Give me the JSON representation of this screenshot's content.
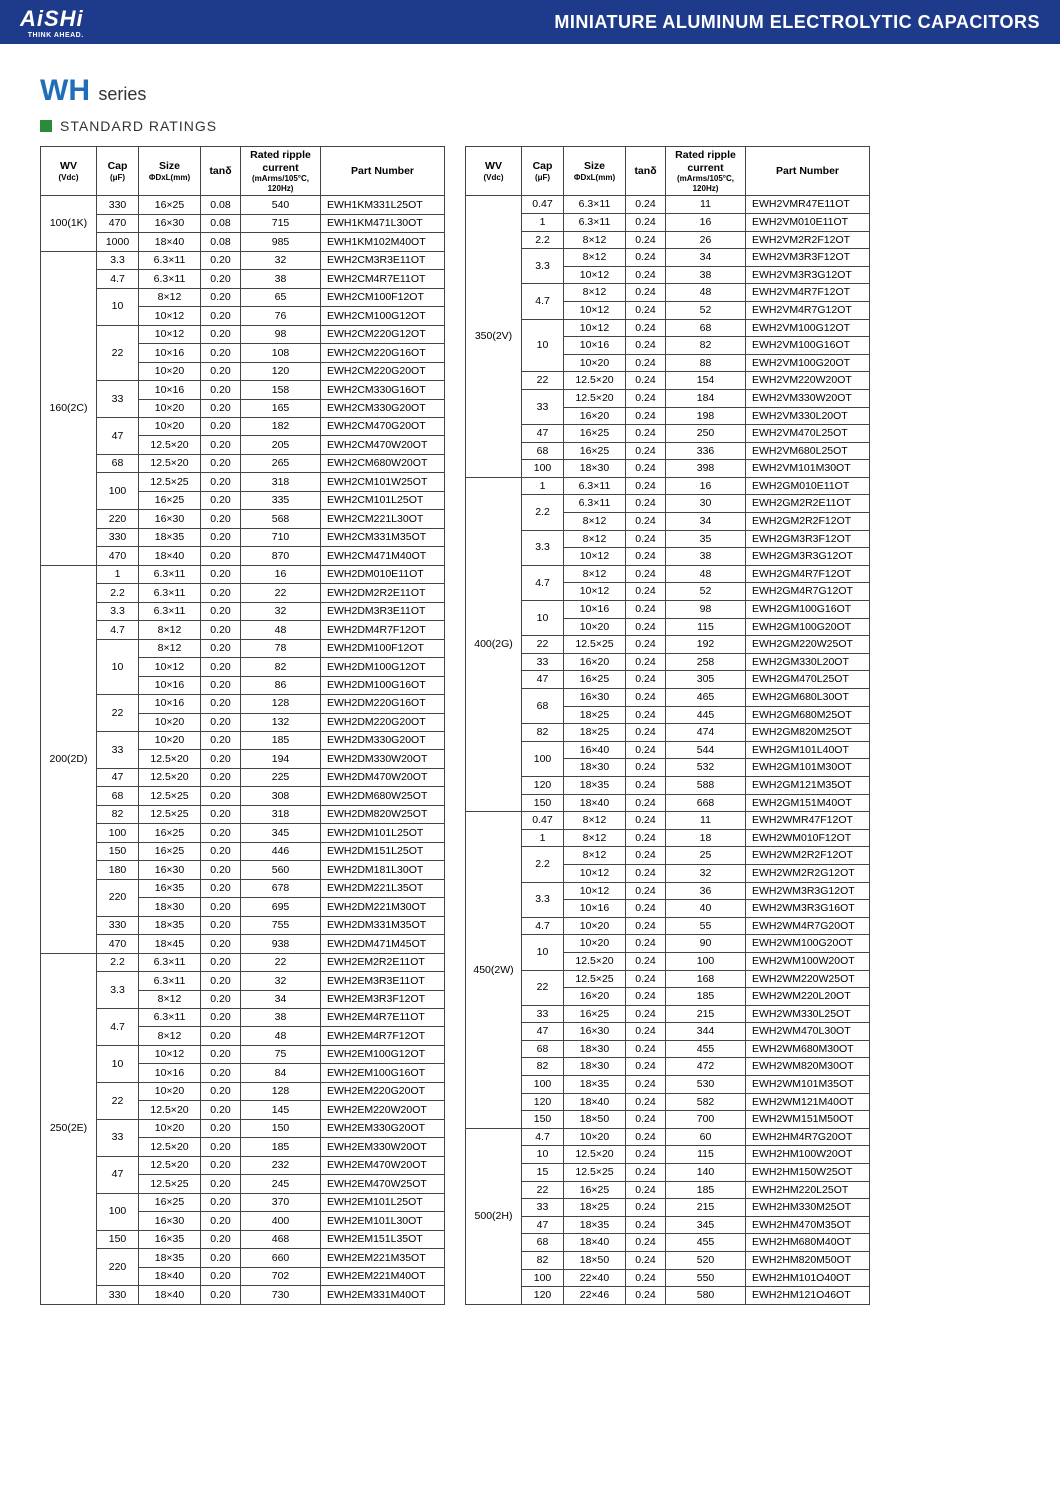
{
  "header": {
    "brand": "AiSHi",
    "brand_sub": "THINK AHEAD.",
    "title": "MINIATURE ALUMINUM ELECTROLYTIC CAPACITORS"
  },
  "series": {
    "name": "WH",
    "suffix": "series",
    "section": "STANDARD RATINGS"
  },
  "columns": {
    "wv": "WV",
    "wv_sub": "(Vdc)",
    "cap": "Cap",
    "cap_sub": "(μF)",
    "size": "Size",
    "size_sub": "ΦDxL(mm)",
    "tan": "tanδ",
    "ripple": "Rated ripple current",
    "ripple_sub": "(mArms/105°C, 120Hz)",
    "pn": "Part Number"
  },
  "left": [
    {
      "wv": "100(1K)",
      "rows": [
        {
          "cap": "330",
          "size": "16×25",
          "tan": "0.08",
          "rip": "540",
          "pn": "EWH1KM331L25OT"
        },
        {
          "cap": "470",
          "size": "16×30",
          "tan": "0.08",
          "rip": "715",
          "pn": "EWH1KM471L30OT"
        },
        {
          "cap": "1000",
          "size": "18×40",
          "tan": "0.08",
          "rip": "985",
          "pn": "EWH1KM102M40OT"
        }
      ]
    },
    {
      "wv": "160(2C)",
      "rows": [
        {
          "cap": "3.3",
          "size": "6.3×11",
          "tan": "0.20",
          "rip": "32",
          "pn": "EWH2CM3R3E11OT"
        },
        {
          "cap": "4.7",
          "size": "6.3×11",
          "tan": "0.20",
          "rip": "38",
          "pn": "EWH2CM4R7E11OT"
        },
        {
          "cap": "10",
          "cr": 2,
          "size": "8×12",
          "tan": "0.20",
          "rip": "65",
          "pn": "EWH2CM100F12OT"
        },
        {
          "size": "10×12",
          "tan": "0.20",
          "rip": "76",
          "pn": "EWH2CM100G12OT"
        },
        {
          "cap": "22",
          "cr": 3,
          "size": "10×12",
          "tan": "0.20",
          "rip": "98",
          "pn": "EWH2CM220G12OT"
        },
        {
          "size": "10×16",
          "tan": "0.20",
          "rip": "108",
          "pn": "EWH2CM220G16OT"
        },
        {
          "size": "10×20",
          "tan": "0.20",
          "rip": "120",
          "pn": "EWH2CM220G20OT"
        },
        {
          "cap": "33",
          "cr": 2,
          "size": "10×16",
          "tan": "0.20",
          "rip": "158",
          "pn": "EWH2CM330G16OT"
        },
        {
          "size": "10×20",
          "tan": "0.20",
          "rip": "165",
          "pn": "EWH2CM330G20OT"
        },
        {
          "cap": "47",
          "cr": 2,
          "size": "10×20",
          "tan": "0.20",
          "rip": "182",
          "pn": "EWH2CM470G20OT"
        },
        {
          "size": "12.5×20",
          "tan": "0.20",
          "rip": "205",
          "pn": "EWH2CM470W20OT"
        },
        {
          "cap": "68",
          "size": "12.5×20",
          "tan": "0.20",
          "rip": "265",
          "pn": "EWH2CM680W20OT"
        },
        {
          "cap": "100",
          "cr": 2,
          "size": "12.5×25",
          "tan": "0.20",
          "rip": "318",
          "pn": "EWH2CM101W25OT"
        },
        {
          "size": "16×25",
          "tan": "0.20",
          "rip": "335",
          "pn": "EWH2CM101L25OT"
        },
        {
          "cap": "220",
          "size": "16×30",
          "tan": "0.20",
          "rip": "568",
          "pn": "EWH2CM221L30OT"
        },
        {
          "cap": "330",
          "size": "18×35",
          "tan": "0.20",
          "rip": "710",
          "pn": "EWH2CM331M35OT"
        },
        {
          "cap": "470",
          "size": "18×40",
          "tan": "0.20",
          "rip": "870",
          "pn": "EWH2CM471M40OT"
        }
      ]
    },
    {
      "wv": "200(2D)",
      "rows": [
        {
          "cap": "1",
          "size": "6.3×11",
          "tan": "0.20",
          "rip": "16",
          "pn": "EWH2DM010E11OT"
        },
        {
          "cap": "2.2",
          "size": "6.3×11",
          "tan": "0.20",
          "rip": "22",
          "pn": "EWH2DM2R2E11OT"
        },
        {
          "cap": "3.3",
          "size": "6.3×11",
          "tan": "0.20",
          "rip": "32",
          "pn": "EWH2DM3R3E11OT"
        },
        {
          "cap": "4.7",
          "size": "8×12",
          "tan": "0.20",
          "rip": "48",
          "pn": "EWH2DM4R7F12OT"
        },
        {
          "cap": "10",
          "cr": 3,
          "size": "8×12",
          "tan": "0.20",
          "rip": "78",
          "pn": "EWH2DM100F12OT"
        },
        {
          "size": "10×12",
          "tan": "0.20",
          "rip": "82",
          "pn": "EWH2DM100G12OT"
        },
        {
          "size": "10×16",
          "tan": "0.20",
          "rip": "86",
          "pn": "EWH2DM100G16OT"
        },
        {
          "cap": "22",
          "cr": 2,
          "size": "10×16",
          "tan": "0.20",
          "rip": "128",
          "pn": "EWH2DM220G16OT"
        },
        {
          "size": "10×20",
          "tan": "0.20",
          "rip": "132",
          "pn": "EWH2DM220G20OT"
        },
        {
          "cap": "33",
          "cr": 2,
          "size": "10×20",
          "tan": "0.20",
          "rip": "185",
          "pn": "EWH2DM330G20OT"
        },
        {
          "size": "12.5×20",
          "tan": "0.20",
          "rip": "194",
          "pn": "EWH2DM330W20OT"
        },
        {
          "cap": "47",
          "size": "12.5×20",
          "tan": "0.20",
          "rip": "225",
          "pn": "EWH2DM470W20OT"
        },
        {
          "cap": "68",
          "size": "12.5×25",
          "tan": "0.20",
          "rip": "308",
          "pn": "EWH2DM680W25OT"
        },
        {
          "cap": "82",
          "size": "12.5×25",
          "tan": "0.20",
          "rip": "318",
          "pn": "EWH2DM820W25OT"
        },
        {
          "cap": "100",
          "size": "16×25",
          "tan": "0.20",
          "rip": "345",
          "pn": "EWH2DM101L25OT"
        },
        {
          "cap": "150",
          "size": "16×25",
          "tan": "0.20",
          "rip": "446",
          "pn": "EWH2DM151L25OT"
        },
        {
          "cap": "180",
          "size": "16×30",
          "tan": "0.20",
          "rip": "560",
          "pn": "EWH2DM181L30OT"
        },
        {
          "cap": "220",
          "cr": 2,
          "size": "16×35",
          "tan": "0.20",
          "rip": "678",
          "pn": "EWH2DM221L35OT"
        },
        {
          "size": "18×30",
          "tan": "0.20",
          "rip": "695",
          "pn": "EWH2DM221M30OT"
        },
        {
          "cap": "330",
          "size": "18×35",
          "tan": "0.20",
          "rip": "755",
          "pn": "EWH2DM331M35OT"
        },
        {
          "cap": "470",
          "size": "18×45",
          "tan": "0.20",
          "rip": "938",
          "pn": "EWH2DM471M45OT"
        }
      ]
    },
    {
      "wv": "250(2E)",
      "rows": [
        {
          "cap": "2.2",
          "size": "6.3×11",
          "tan": "0.20",
          "rip": "22",
          "pn": "EWH2EM2R2E11OT"
        },
        {
          "cap": "3.3",
          "cr": 2,
          "size": "6.3×11",
          "tan": "0.20",
          "rip": "32",
          "pn": "EWH2EM3R3E11OT"
        },
        {
          "size": "8×12",
          "tan": "0.20",
          "rip": "34",
          "pn": "EWH2EM3R3F12OT"
        },
        {
          "cap": "4.7",
          "cr": 2,
          "size": "6.3×11",
          "tan": "0.20",
          "rip": "38",
          "pn": "EWH2EM4R7E11OT"
        },
        {
          "size": "8×12",
          "tan": "0.20",
          "rip": "48",
          "pn": "EWH2EM4R7F12OT"
        },
        {
          "cap": "10",
          "cr": 2,
          "size": "10×12",
          "tan": "0.20",
          "rip": "75",
          "pn": "EWH2EM100G12OT"
        },
        {
          "size": "10×16",
          "tan": "0.20",
          "rip": "84",
          "pn": "EWH2EM100G16OT"
        },
        {
          "cap": "22",
          "cr": 2,
          "size": "10×20",
          "tan": "0.20",
          "rip": "128",
          "pn": "EWH2EM220G20OT"
        },
        {
          "size": "12.5×20",
          "tan": "0.20",
          "rip": "145",
          "pn": "EWH2EM220W20OT"
        },
        {
          "cap": "33",
          "cr": 2,
          "size": "10×20",
          "tan": "0.20",
          "rip": "150",
          "pn": "EWH2EM330G20OT"
        },
        {
          "size": "12.5×20",
          "tan": "0.20",
          "rip": "185",
          "pn": "EWH2EM330W20OT"
        },
        {
          "cap": "47",
          "cr": 2,
          "size": "12.5×20",
          "tan": "0.20",
          "rip": "232",
          "pn": "EWH2EM470W20OT"
        },
        {
          "size": "12.5×25",
          "tan": "0.20",
          "rip": "245",
          "pn": "EWH2EM470W25OT"
        },
        {
          "cap": "100",
          "cr": 2,
          "size": "16×25",
          "tan": "0.20",
          "rip": "370",
          "pn": "EWH2EM101L25OT"
        },
        {
          "size": "16×30",
          "tan": "0.20",
          "rip": "400",
          "pn": "EWH2EM101L30OT"
        },
        {
          "cap": "150",
          "size": "16×35",
          "tan": "0.20",
          "rip": "468",
          "pn": "EWH2EM151L35OT"
        },
        {
          "cap": "220",
          "cr": 2,
          "size": "18×35",
          "tan": "0.20",
          "rip": "660",
          "pn": "EWH2EM221M35OT"
        },
        {
          "size": "18×40",
          "tan": "0.20",
          "rip": "702",
          "pn": "EWH2EM221M40OT"
        },
        {
          "cap": "330",
          "size": "18×40",
          "tan": "0.20",
          "rip": "730",
          "pn": "EWH2EM331M40OT"
        }
      ]
    }
  ],
  "right": [
    {
      "wv": "350(2V)",
      "rows": [
        {
          "cap": "0.47",
          "size": "6.3×11",
          "tan": "0.24",
          "rip": "11",
          "pn": "EWH2VMR47E11OT"
        },
        {
          "cap": "1",
          "size": "6.3×11",
          "tan": "0.24",
          "rip": "16",
          "pn": "EWH2VM010E11OT"
        },
        {
          "cap": "2.2",
          "size": "8×12",
          "tan": "0.24",
          "rip": "26",
          "pn": "EWH2VM2R2F12OT"
        },
        {
          "cap": "3.3",
          "cr": 2,
          "size": "8×12",
          "tan": "0.24",
          "rip": "34",
          "pn": "EWH2VM3R3F12OT"
        },
        {
          "size": "10×12",
          "tan": "0.24",
          "rip": "38",
          "pn": "EWH2VM3R3G12OT"
        },
        {
          "cap": "4.7",
          "cr": 2,
          "size": "8×12",
          "tan": "0.24",
          "rip": "48",
          "pn": "EWH2VM4R7F12OT"
        },
        {
          "size": "10×12",
          "tan": "0.24",
          "rip": "52",
          "pn": "EWH2VM4R7G12OT"
        },
        {
          "cap": "10",
          "cr": 3,
          "size": "10×12",
          "tan": "0.24",
          "rip": "68",
          "pn": "EWH2VM100G12OT"
        },
        {
          "size": "10×16",
          "tan": "0.24",
          "rip": "82",
          "pn": "EWH2VM100G16OT"
        },
        {
          "size": "10×20",
          "tan": "0.24",
          "rip": "88",
          "pn": "EWH2VM100G20OT"
        },
        {
          "cap": "22",
          "size": "12.5×20",
          "tan": "0.24",
          "rip": "154",
          "pn": "EWH2VM220W20OT"
        },
        {
          "cap": "33",
          "cr": 2,
          "size": "12.5×20",
          "tan": "0.24",
          "rip": "184",
          "pn": "EWH2VM330W20OT"
        },
        {
          "size": "16×20",
          "tan": "0.24",
          "rip": "198",
          "pn": "EWH2VM330L20OT"
        },
        {
          "cap": "47",
          "size": "16×25",
          "tan": "0.24",
          "rip": "250",
          "pn": "EWH2VM470L25OT"
        },
        {
          "cap": "68",
          "size": "16×25",
          "tan": "0.24",
          "rip": "336",
          "pn": "EWH2VM680L25OT"
        },
        {
          "cap": "100",
          "size": "18×30",
          "tan": "0.24",
          "rip": "398",
          "pn": "EWH2VM101M30OT"
        }
      ]
    },
    {
      "wv": "400(2G)",
      "rows": [
        {
          "cap": "1",
          "size": "6.3×11",
          "tan": "0.24",
          "rip": "16",
          "pn": "EWH2GM010E11OT"
        },
        {
          "cap": "2.2",
          "cr": 2,
          "size": "6.3×11",
          "tan": "0.24",
          "rip": "30",
          "pn": "EWH2GM2R2E11OT"
        },
        {
          "size": "8×12",
          "tan": "0.24",
          "rip": "34",
          "pn": "EWH2GM2R2F12OT"
        },
        {
          "cap": "3.3",
          "cr": 2,
          "size": "8×12",
          "tan": "0.24",
          "rip": "35",
          "pn": "EWH2GM3R3F12OT"
        },
        {
          "size": "10×12",
          "tan": "0.24",
          "rip": "38",
          "pn": "EWH2GM3R3G12OT"
        },
        {
          "cap": "4.7",
          "cr": 2,
          "size": "8×12",
          "tan": "0.24",
          "rip": "48",
          "pn": "EWH2GM4R7F12OT"
        },
        {
          "size": "10×12",
          "tan": "0.24",
          "rip": "52",
          "pn": "EWH2GM4R7G12OT"
        },
        {
          "cap": "10",
          "cr": 2,
          "size": "10×16",
          "tan": "0.24",
          "rip": "98",
          "pn": "EWH2GM100G16OT"
        },
        {
          "size": "10×20",
          "tan": "0.24",
          "rip": "115",
          "pn": "EWH2GM100G20OT"
        },
        {
          "cap": "22",
          "size": "12.5×25",
          "tan": "0.24",
          "rip": "192",
          "pn": "EWH2GM220W25OT"
        },
        {
          "cap": "33",
          "size": "16×20",
          "tan": "0.24",
          "rip": "258",
          "pn": "EWH2GM330L20OT"
        },
        {
          "cap": "47",
          "size": "16×25",
          "tan": "0.24",
          "rip": "305",
          "pn": "EWH2GM470L25OT"
        },
        {
          "cap": "68",
          "cr": 2,
          "size": "16×30",
          "tan": "0.24",
          "rip": "465",
          "pn": "EWH2GM680L30OT"
        },
        {
          "size": "18×25",
          "tan": "0.24",
          "rip": "445",
          "pn": "EWH2GM680M25OT"
        },
        {
          "cap": "82",
          "size": "18×25",
          "tan": "0.24",
          "rip": "474",
          "pn": "EWH2GM820M25OT"
        },
        {
          "cap": "100",
          "cr": 2,
          "size": "16×40",
          "tan": "0.24",
          "rip": "544",
          "pn": "EWH2GM101L40OT"
        },
        {
          "size": "18×30",
          "tan": "0.24",
          "rip": "532",
          "pn": "EWH2GM101M30OT"
        },
        {
          "cap": "120",
          "size": "18×35",
          "tan": "0.24",
          "rip": "588",
          "pn": "EWH2GM121M35OT"
        },
        {
          "cap": "150",
          "size": "18×40",
          "tan": "0.24",
          "rip": "668",
          "pn": "EWH2GM151M40OT"
        }
      ]
    },
    {
      "wv": "450(2W)",
      "rows": [
        {
          "cap": "0.47",
          "size": "8×12",
          "tan": "0.24",
          "rip": "11",
          "pn": "EWH2WMR47F12OT"
        },
        {
          "cap": "1",
          "size": "8×12",
          "tan": "0.24",
          "rip": "18",
          "pn": "EWH2WM010F12OT"
        },
        {
          "cap": "2.2",
          "cr": 2,
          "size": "8×12",
          "tan": "0.24",
          "rip": "25",
          "pn": "EWH2WM2R2F12OT"
        },
        {
          "size": "10×12",
          "tan": "0.24",
          "rip": "32",
          "pn": "EWH2WM2R2G12OT"
        },
        {
          "cap": "3.3",
          "cr": 2,
          "size": "10×12",
          "tan": "0.24",
          "rip": "36",
          "pn": "EWH2WM3R3G12OT"
        },
        {
          "size": "10×16",
          "tan": "0.24",
          "rip": "40",
          "pn": "EWH2WM3R3G16OT"
        },
        {
          "cap": "4.7",
          "size": "10×20",
          "tan": "0.24",
          "rip": "55",
          "pn": "EWH2WM4R7G20OT"
        },
        {
          "cap": "10",
          "cr": 2,
          "size": "10×20",
          "tan": "0.24",
          "rip": "90",
          "pn": "EWH2WM100G20OT"
        },
        {
          "size": "12.5×20",
          "tan": "0.24",
          "rip": "100",
          "pn": "EWH2WM100W20OT"
        },
        {
          "cap": "22",
          "cr": 2,
          "size": "12.5×25",
          "tan": "0.24",
          "rip": "168",
          "pn": "EWH2WM220W25OT"
        },
        {
          "size": "16×20",
          "tan": "0.24",
          "rip": "185",
          "pn": "EWH2WM220L20OT"
        },
        {
          "cap": "33",
          "size": "16×25",
          "tan": "0.24",
          "rip": "215",
          "pn": "EWH2WM330L25OT"
        },
        {
          "cap": "47",
          "size": "16×30",
          "tan": "0.24",
          "rip": "344",
          "pn": "EWH2WM470L30OT"
        },
        {
          "cap": "68",
          "size": "18×30",
          "tan": "0.24",
          "rip": "455",
          "pn": "EWH2WM680M30OT"
        },
        {
          "cap": "82",
          "size": "18×30",
          "tan": "0.24",
          "rip": "472",
          "pn": "EWH2WM820M30OT"
        },
        {
          "cap": "100",
          "size": "18×35",
          "tan": "0.24",
          "rip": "530",
          "pn": "EWH2WM101M35OT"
        },
        {
          "cap": "120",
          "size": "18×40",
          "tan": "0.24",
          "rip": "582",
          "pn": "EWH2WM121M40OT"
        },
        {
          "cap": "150",
          "size": "18×50",
          "tan": "0.24",
          "rip": "700",
          "pn": "EWH2WM151M50OT"
        }
      ]
    },
    {
      "wv": "500(2H)",
      "rows": [
        {
          "cap": "4.7",
          "size": "10×20",
          "tan": "0.24",
          "rip": "60",
          "pn": "EWH2HM4R7G20OT"
        },
        {
          "cap": "10",
          "size": "12.5×20",
          "tan": "0.24",
          "rip": "115",
          "pn": "EWH2HM100W20OT"
        },
        {
          "cap": "15",
          "size": "12.5×25",
          "tan": "0.24",
          "rip": "140",
          "pn": "EWH2HM150W25OT"
        },
        {
          "cap": "22",
          "size": "16×25",
          "tan": "0.24",
          "rip": "185",
          "pn": "EWH2HM220L25OT"
        },
        {
          "cap": "33",
          "size": "18×25",
          "tan": "0.24",
          "rip": "215",
          "pn": "EWH2HM330M25OT"
        },
        {
          "cap": "47",
          "size": "18×35",
          "tan": "0.24",
          "rip": "345",
          "pn": "EWH2HM470M35OT"
        },
        {
          "cap": "68",
          "size": "18×40",
          "tan": "0.24",
          "rip": "455",
          "pn": "EWH2HM680M40OT"
        },
        {
          "cap": "82",
          "size": "18×50",
          "tan": "0.24",
          "rip": "520",
          "pn": "EWH2HM820M50OT"
        },
        {
          "cap": "100",
          "size": "22×40",
          "tan": "0.24",
          "rip": "550",
          "pn": "EWH2HM101O40OT"
        },
        {
          "cap": "120",
          "size": "22×46",
          "tan": "0.24",
          "rip": "580",
          "pn": "EWH2HM121O46OT"
        }
      ]
    }
  ]
}
